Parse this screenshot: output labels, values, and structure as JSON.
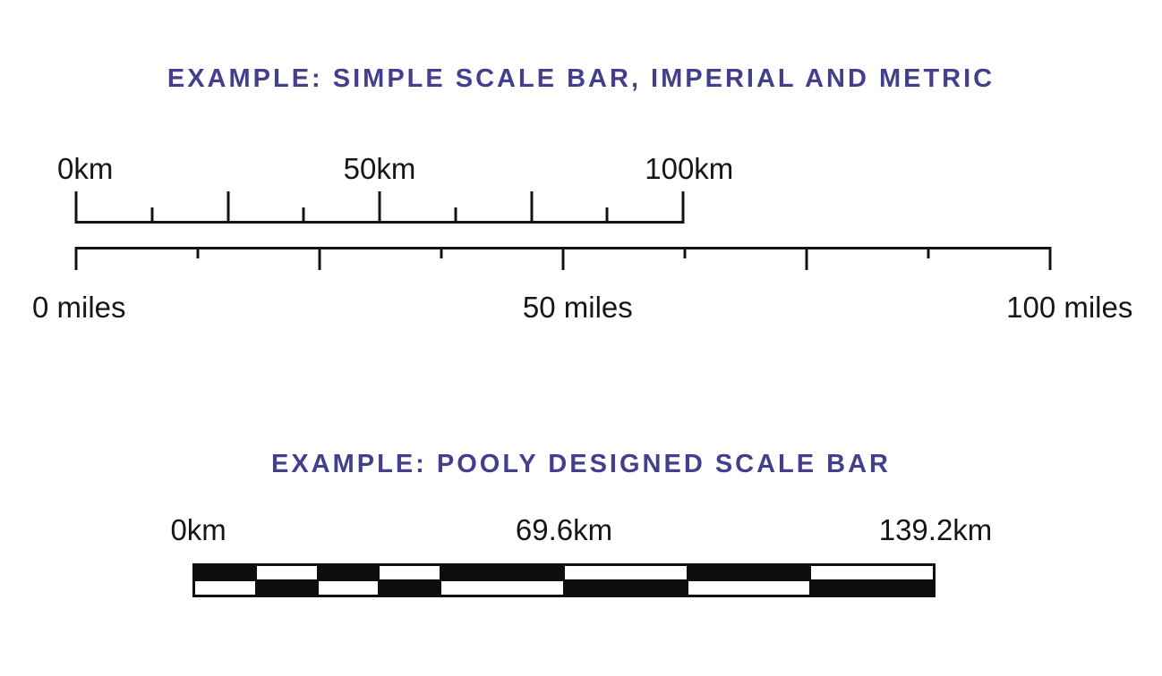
{
  "colors": {
    "heading_purple": "#443f8c",
    "ink_black": "#161616",
    "checker_black": "#0e0e0e",
    "checker_white": "#ffffff",
    "background": "#ffffff"
  },
  "good_scale": {
    "title": "EXAMPLE: SIMPLE SCALE BAR, IMPERIAL AND METRIC",
    "metric_ruler": {
      "unit": "km",
      "range_start": 0,
      "range_end": 100,
      "orientation": "ticks-up",
      "labels": [
        {
          "text": "0km",
          "pos_pct": 1.5
        },
        {
          "text": "50km",
          "pos_pct": 50
        },
        {
          "text": "100km",
          "pos_pct": 101
        }
      ],
      "ticks": [
        {
          "pos_pct": 0,
          "kind": "major"
        },
        {
          "pos_pct": 12.5,
          "kind": "minor"
        },
        {
          "pos_pct": 25,
          "kind": "major"
        },
        {
          "pos_pct": 37.5,
          "kind": "minor"
        },
        {
          "pos_pct": 50,
          "kind": "major"
        },
        {
          "pos_pct": 62.5,
          "kind": "minor"
        },
        {
          "pos_pct": 75,
          "kind": "major"
        },
        {
          "pos_pct": 87.5,
          "kind": "minor"
        },
        {
          "pos_pct": 100,
          "kind": "major"
        }
      ]
    },
    "imperial_ruler": {
      "unit": "miles",
      "range_start": 0,
      "range_end": 100,
      "orientation": "ticks-down",
      "labels": [
        {
          "text": "0 miles",
          "pos_pct": 0.3
        },
        {
          "text": "50 miles",
          "pos_pct": 51.5
        },
        {
          "text": "100 miles",
          "pos_pct": 102
        }
      ],
      "ticks": [
        {
          "pos_pct": 0,
          "kind": "major"
        },
        {
          "pos_pct": 12.5,
          "kind": "minor"
        },
        {
          "pos_pct": 25,
          "kind": "major"
        },
        {
          "pos_pct": 37.5,
          "kind": "minor"
        },
        {
          "pos_pct": 50,
          "kind": "major"
        },
        {
          "pos_pct": 62.5,
          "kind": "minor"
        },
        {
          "pos_pct": 75,
          "kind": "major"
        },
        {
          "pos_pct": 87.5,
          "kind": "minor"
        },
        {
          "pos_pct": 100,
          "kind": "major"
        }
      ]
    }
  },
  "poor_scale": {
    "title": "EXAMPLE: POOLY DESIGNED SCALE BAR",
    "labels": [
      {
        "text": "0km",
        "pos_pct": 0.8
      },
      {
        "text": "69.6km",
        "pos_pct": 50
      },
      {
        "text": "139.2km",
        "pos_pct": 100
      }
    ],
    "checker": {
      "segment_units": [
        1,
        1,
        1,
        1,
        2,
        2,
        2,
        2
      ],
      "rows": [
        [
          "black",
          "white",
          "black",
          "white",
          "black",
          "white",
          "black",
          "white"
        ],
        [
          "white",
          "black",
          "white",
          "black",
          "white",
          "black",
          "white",
          "black"
        ]
      ]
    }
  }
}
